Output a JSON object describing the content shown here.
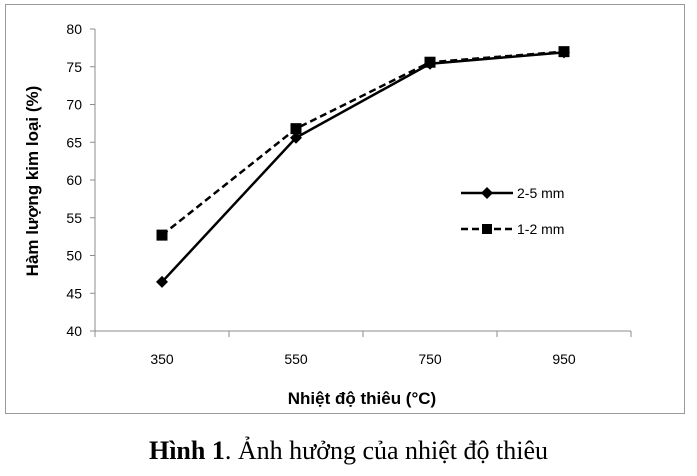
{
  "chart_data": {
    "type": "line",
    "xlabel": "Nhiệt độ thiêu (°C)",
    "ylabel": "Hàm lượng kim loại (%)",
    "categories": [
      "350",
      "550",
      "750",
      "950"
    ],
    "ylim": [
      40,
      80
    ],
    "yticks": [
      40,
      45,
      50,
      55,
      60,
      65,
      70,
      75,
      80
    ],
    "grid": false,
    "legend_position": "right",
    "series": [
      {
        "name": "2-5 mm",
        "values": [
          46.5,
          65.6,
          75.4,
          76.9
        ],
        "line_style": "solid",
        "marker": "diamond",
        "color": "#000000"
      },
      {
        "name": "1-2 mm",
        "values": [
          52.7,
          66.8,
          75.6,
          77.0
        ],
        "line_style": "dashed",
        "marker": "square",
        "color": "#000000"
      }
    ]
  },
  "caption": {
    "label": "Hình 1",
    "text": ". Ảnh hưởng của nhiệt độ thiêu"
  }
}
